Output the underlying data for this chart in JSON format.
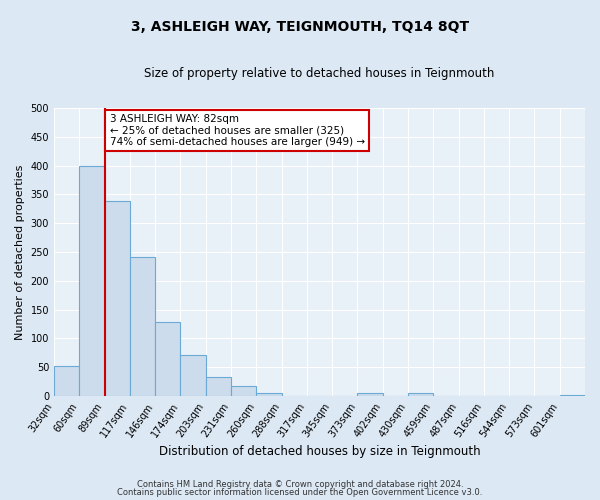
{
  "title": "3, ASHLEIGH WAY, TEIGNMOUTH, TQ14 8QT",
  "subtitle": "Size of property relative to detached houses in Teignmouth",
  "xlabel": "Distribution of detached houses by size in Teignmouth",
  "ylabel": "Number of detached properties",
  "bin_labels": [
    "32sqm",
    "60sqm",
    "89sqm",
    "117sqm",
    "146sqm",
    "174sqm",
    "203sqm",
    "231sqm",
    "260sqm",
    "288sqm",
    "317sqm",
    "345sqm",
    "373sqm",
    "402sqm",
    "430sqm",
    "459sqm",
    "487sqm",
    "516sqm",
    "544sqm",
    "573sqm",
    "601sqm"
  ],
  "bar_heights": [
    52,
    400,
    338,
    242,
    128,
    71,
    34,
    18,
    6,
    0,
    0,
    0,
    5,
    0,
    5,
    0,
    0,
    0,
    0,
    0,
    2
  ],
  "bar_color": "#ccdcec",
  "bar_edgecolor": "#6aaad4",
  "vline_color": "#cc0000",
  "vline_x_index": 2,
  "ylim": [
    0,
    500
  ],
  "yticks": [
    0,
    50,
    100,
    150,
    200,
    250,
    300,
    350,
    400,
    450,
    500
  ],
  "annotation_text": "3 ASHLEIGH WAY: 82sqm\n← 25% of detached houses are smaller (325)\n74% of semi-detached houses are larger (949) →",
  "annotation_box_color": "#ffffff",
  "annotation_box_edgecolor": "#cc0000",
  "footer1": "Contains HM Land Registry data © Crown copyright and database right 2024.",
  "footer2": "Contains public sector information licensed under the Open Government Licence v3.0.",
  "bg_color": "#dce8f4",
  "plot_bg_color": "#e8f0f8",
  "grid_color": "#ffffff",
  "title_fontsize": 10,
  "subtitle_fontsize": 8.5,
  "ylabel_fontsize": 8,
  "xlabel_fontsize": 8.5,
  "tick_fontsize": 7,
  "footer_fontsize": 6
}
